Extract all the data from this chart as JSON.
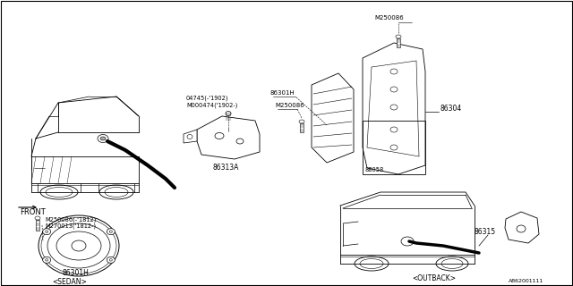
{
  "bg_color": "#ffffff",
  "line_color": "#000000",
  "diagram_id": "A862001111",
  "labels": {
    "sedan": "<SEDAN>",
    "outback": "<OUTBACK>",
    "front": "FRONT",
    "86301H_sedan": "86301H",
    "86301H_upper": "86301H",
    "86313A": "86313A",
    "86304": "86304",
    "88058": "88058",
    "86315": "86315",
    "M250086_screw1": "M250086(-'1812)",
    "M270013": "M270013('1812-)",
    "04745": "04745(-'1902)",
    "M000474": "M000474('1902-)",
    "M250086_upper": "M250086",
    "M250086_mid": "M250086"
  }
}
